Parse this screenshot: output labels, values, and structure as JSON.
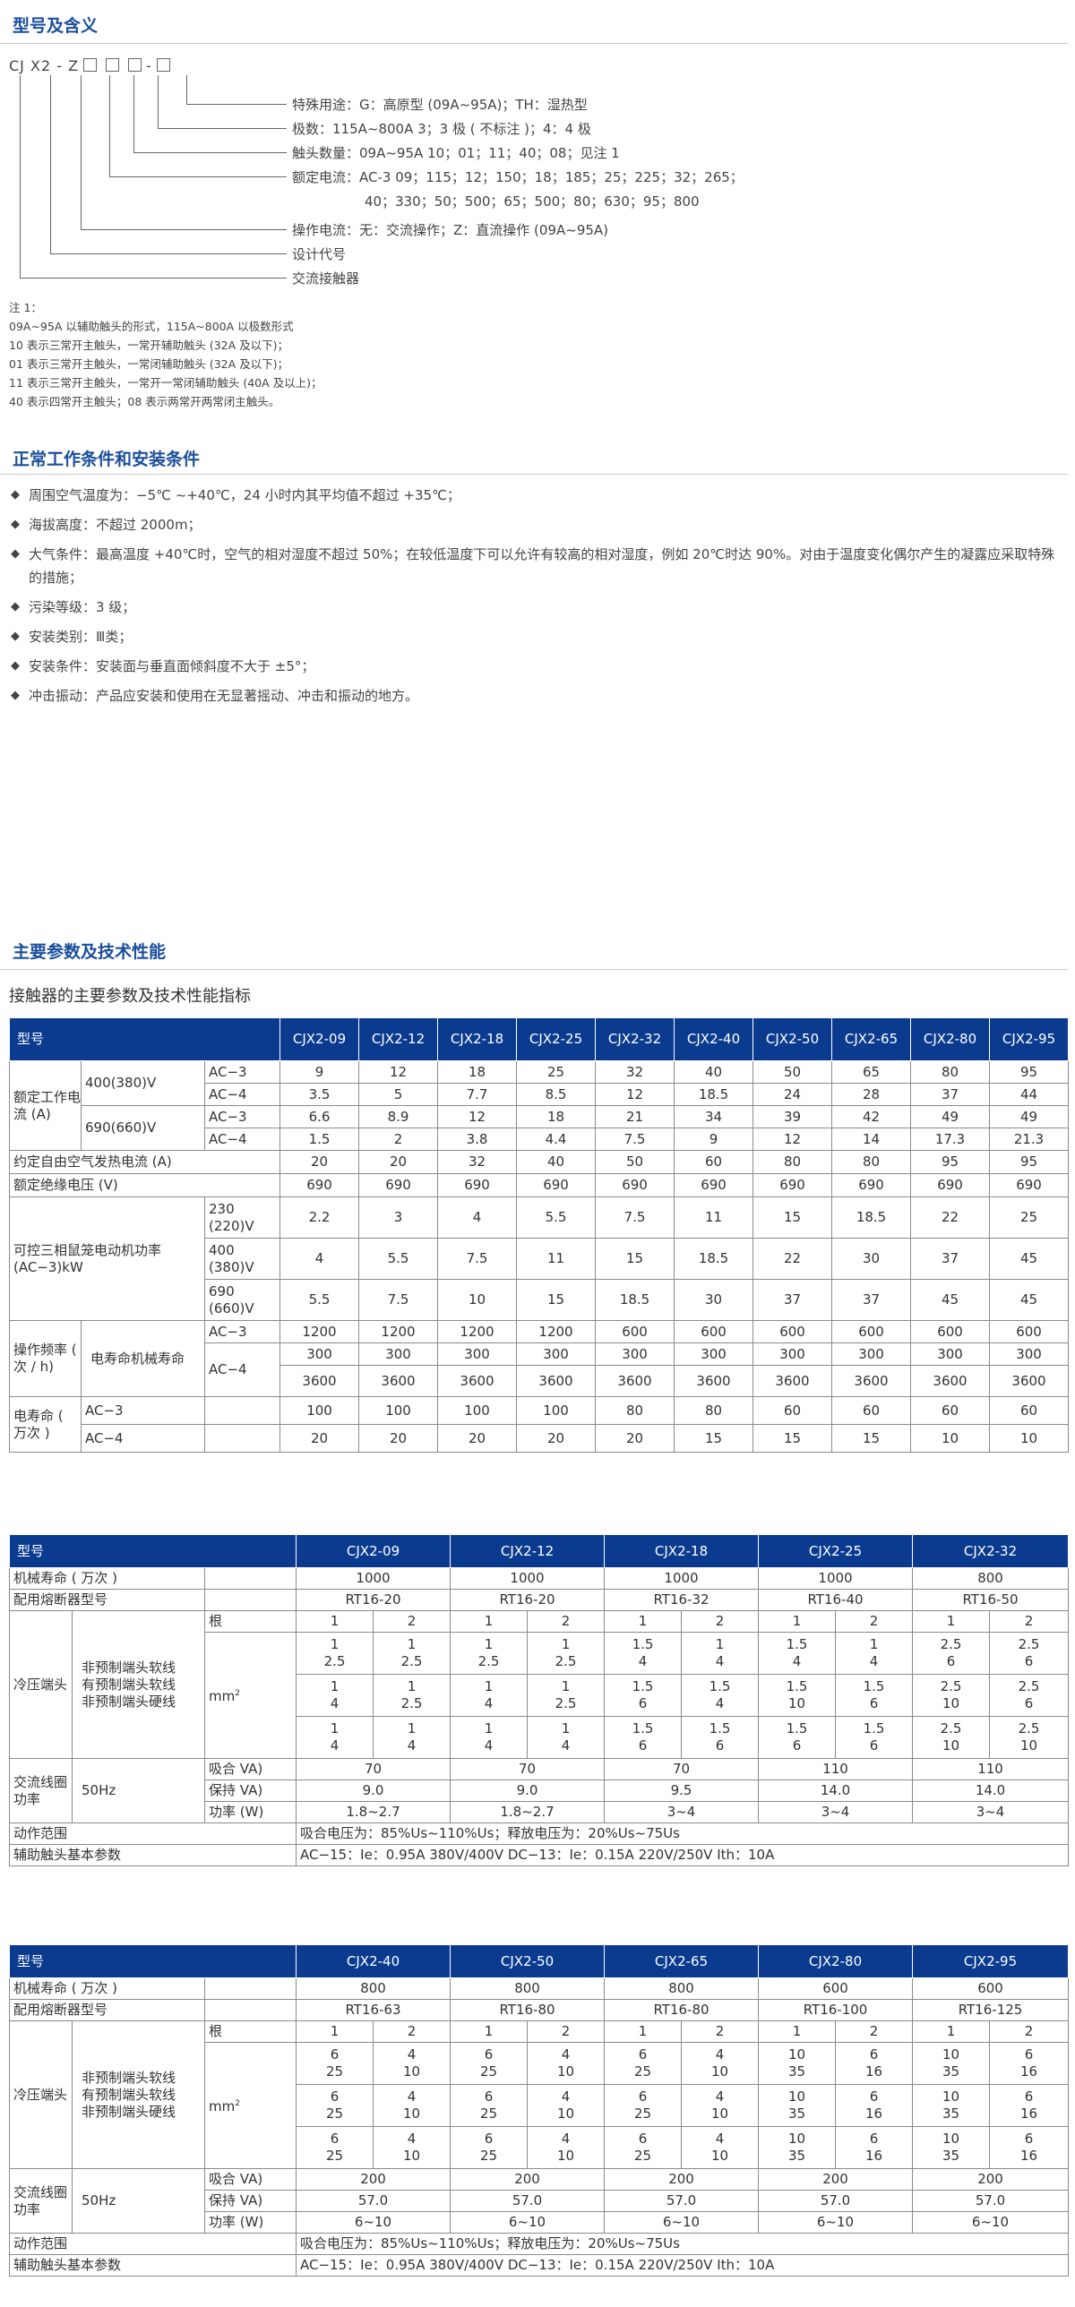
{
  "sections": {
    "model": "型号及含义",
    "conditions": "正常工作条件和安装条件",
    "params": "主要参数及技术性能"
  },
  "model_code": {
    "prefix": "CJ X2 - Z",
    "dash": "-"
  },
  "model_descriptions": [
    "特殊用途：G：高原型 (09A~95A)；TH：湿热型",
    "极数：115A~800A  3；3 极 ( 不标注 )；4：4 极",
    "触头数量：09A~95A  10；01；11；40；08；见注 1",
    "额定电流：AC-3  09；115；12；150；18；185；25；225；32；265；",
    "40；330；50；500；65；500；80；630；95；800",
    "操作电流：无：交流操作；Z：直流操作 (09A~95A)",
    "设计代号",
    "交流接触器"
  ],
  "notes": [
    "注 1：",
    "09A~95A 以辅助触头的形式，115A~800A 以极数形式",
    "10 表示三常开主触头，一常开辅助触头 (32A 及以下)；",
    "01 表示三常开主触头，一常闭辅助触头 (32A 及以下)；",
    "11 表示三常开主触头，一常开一常闭辅助触头 (40A 及以上)；",
    "40 表示四常开主触头；08 表示两常开两常闭主触头。"
  ],
  "conditions": [
    "周围空气温度为：−5℃ ~+40℃，24 小时内其平均值不超过 +35℃；",
    "海拔高度：不超过 2000m；",
    "大气条件：最高温度 +40℃时，空气的相对湿度不超过 50%；在较低温度下可以允许有较高的相对湿度，例如 20℃时达 90%。对由于温度变化偶尔产生的凝露应采取特殊的措施；",
    "污染等级：3 级；",
    "安装类别：Ⅲ类；",
    "安装条件：安装面与垂直面倾斜度不大于 ±5°；",
    "冲击振动：产品应安装和使用在无显著摇动、冲击和振动的地方。"
  ],
  "subtitle": "接触器的主要参数及技术性能指标",
  "table1": {
    "header_label": "型号",
    "models": [
      "CJX2-09",
      "CJX2-12",
      "CJX2-18",
      "CJX2-25",
      "CJX2-32",
      "CJX2-40",
      "CJX2-50",
      "CJX2-65",
      "CJX2-80",
      "CJX2-95"
    ],
    "rated_current_label": "额定工作电流 (A)",
    "v400": "400(380)V",
    "v690": "690(660)V",
    "ac3": "AC−3",
    "ac4": "AC−4",
    "r400_ac3": [
      "9",
      "12",
      "18",
      "25",
      "32",
      "40",
      "50",
      "65",
      "80",
      "95"
    ],
    "r400_ac4": [
      "3.5",
      "5",
      "7.7",
      "8.5",
      "12",
      "18.5",
      "24",
      "28",
      "37",
      "44"
    ],
    "r690_ac3": [
      "6.6",
      "8.9",
      "12",
      "18",
      "21",
      "34",
      "39",
      "42",
      "49",
      "49"
    ],
    "r690_ac4": [
      "1.5",
      "2",
      "3.8",
      "4.4",
      "7.5",
      "9",
      "12",
      "14",
      "17.3",
      "21.3"
    ],
    "thermal_label": "约定自由空气发热电流 (A)",
    "thermal": [
      "20",
      "20",
      "32",
      "40",
      "50",
      "60",
      "80",
      "80",
      "95",
      "95"
    ],
    "insul_label": "额定绝缘电压 (V)",
    "insul": [
      "690",
      "690",
      "690",
      "690",
      "690",
      "690",
      "690",
      "690",
      "690",
      "690"
    ],
    "motor_label": "可控三相鼠笼电动机功率 (AC−3)kW",
    "m230_label": "230 (220)V",
    "m400_label": "400 (380)V",
    "m690_label": "690 (660)V",
    "m230": [
      "2.2",
      "3",
      "4",
      "5.5",
      "7.5",
      "11",
      "15",
      "18.5",
      "22",
      "25"
    ],
    "m400": [
      "4",
      "5.5",
      "7.5",
      "11",
      "15",
      "18.5",
      "22",
      "30",
      "37",
      "45"
    ],
    "m690": [
      "5.5",
      "7.5",
      "10",
      "15",
      "18.5",
      "30",
      "37",
      "37",
      "45",
      "45"
    ],
    "freq_label": "操作频率 ( 次 / h)",
    "life_label": "电寿命机械寿命",
    "f_ac3": [
      "1200",
      "1200",
      "1200",
      "1200",
      "600",
      "600",
      "600",
      "600",
      "600",
      "600"
    ],
    "f_ac4_a": [
      "300",
      "300",
      "300",
      "300",
      "300",
      "300",
      "300",
      "300",
      "300",
      "300"
    ],
    "f_ac4_b": [
      "3600",
      "3600",
      "3600",
      "3600",
      "3600",
      "3600",
      "3600",
      "3600",
      "3600",
      "3600"
    ],
    "elife_label": "电寿命 ( 万次 )",
    "e_ac3": [
      "100",
      "100",
      "100",
      "100",
      "80",
      "80",
      "60",
      "60",
      "60",
      "60"
    ],
    "e_ac4": [
      "20",
      "20",
      "20",
      "20",
      "20",
      "15",
      "15",
      "15",
      "10",
      "10"
    ]
  },
  "table2": {
    "header_label": "型号",
    "models": [
      "CJX2-09",
      "CJX2-12",
      "CJX2-18",
      "CJX2-25",
      "CJX2-32"
    ],
    "mech_label": "机械寿命 ( 万次 )",
    "mech": [
      "1000",
      "1000",
      "1000",
      "1000",
      "800"
    ],
    "fuse_label": "配用熔断器型号",
    "fuse": [
      "RT16-20",
      "RT16-20",
      "RT16-32",
      "RT16-40",
      "RT16-50"
    ],
    "crimp_label": "冷压端头",
    "wire_labels": [
      "非预制端头软线",
      "有预制端头软线",
      "非预制端头硬线"
    ],
    "mm2": "mm",
    "root_label": "根",
    "roots": [
      "1",
      "2",
      "1",
      "2",
      "1",
      "2",
      "1",
      "2",
      "1",
      "2"
    ],
    "r1a": [
      "1",
      "1",
      "1",
      "1",
      "1.5",
      "1",
      "1.5",
      "1",
      "2.5",
      "2.5"
    ],
    "r1b": [
      "2.5",
      "2.5",
      "2.5",
      "2.5",
      "4",
      "4",
      "4",
      "4",
      "6",
      "6"
    ],
    "r2a": [
      "1",
      "1",
      "1",
      "1",
      "1.5",
      "1.5",
      "1.5",
      "1.5",
      "2.5",
      "2.5"
    ],
    "r2b": [
      "4",
      "2.5",
      "4",
      "2.5",
      "6",
      "4",
      "10",
      "6",
      "10",
      "6"
    ],
    "r3a": [
      "1",
      "1",
      "1",
      "1",
      "1.5",
      "1.5",
      "1.5",
      "1.5",
      "2.5",
      "2.5"
    ],
    "r3b": [
      "4",
      "4",
      "4",
      "4",
      "6",
      "6",
      "6",
      "6",
      "10",
      "10"
    ],
    "coil_label": "交流线圈功率",
    "hz": "50Hz",
    "pull_label": "吸合 VA)",
    "hold_label": "保持 VA)",
    "power_label": "功率 (W)",
    "pull": [
      "70",
      "70",
      "70",
      "110",
      "110"
    ],
    "hold": [
      "9.0",
      "9.0",
      "9.5",
      "14.0",
      "14.0"
    ],
    "power": [
      "1.8~2.7",
      "1.8~2.7",
      "3~4",
      "3~4",
      "3~4"
    ],
    "range_label": "动作范围",
    "range": "吸合电压为：85%Us~110%Us；释放电压为：20%Us~75Us",
    "aux_label": "辅助触头基本参数",
    "aux": "AC−15：Ie：0.95A  380V/400V  DC−13：Ie：0.15A  220V/250V  Ith：10A"
  },
  "table3": {
    "header_label": "型号",
    "models": [
      "CJX2-40",
      "CJX2-50",
      "CJX2-65",
      "CJX2-80",
      "CJX2-95"
    ],
    "mech_label": "机械寿命 ( 万次 )",
    "mech": [
      "800",
      "800",
      "800",
      "600",
      "600"
    ],
    "fuse_label": "配用熔断器型号",
    "fuse": [
      "RT16-63",
      "RT16-80",
      "RT16-80",
      "RT16-100",
      "RT16-125"
    ],
    "crimp_label": "冷压端头",
    "wire_labels": [
      "非预制端头软线",
      "有预制端头软线",
      "非预制端头硬线"
    ],
    "mm2": "mm",
    "root_label": "根",
    "roots": [
      "1",
      "2",
      "1",
      "2",
      "1",
      "2",
      "1",
      "2",
      "1",
      "2"
    ],
    "r1a": [
      "6",
      "4",
      "6",
      "4",
      "6",
      "4",
      "10",
      "6",
      "10",
      "6"
    ],
    "r1b": [
      "25",
      "10",
      "25",
      "10",
      "25",
      "10",
      "35",
      "16",
      "35",
      "16"
    ],
    "r2a": [
      "6",
      "4",
      "6",
      "4",
      "6",
      "4",
      "10",
      "6",
      "10",
      "6"
    ],
    "r2b": [
      "25",
      "10",
      "25",
      "10",
      "25",
      "10",
      "35",
      "16",
      "35",
      "16"
    ],
    "r3a": [
      "6",
      "4",
      "6",
      "4",
      "6",
      "4",
      "10",
      "6",
      "10",
      "6"
    ],
    "r3b": [
      "25",
      "10",
      "25",
      "10",
      "25",
      "10",
      "35",
      "16",
      "35",
      "16"
    ],
    "coil_label": "交流线圈功率",
    "hz": "50Hz",
    "pull_label": "吸合 VA)",
    "hold_label": "保持 VA)",
    "power_label": "功率 (W)",
    "pull": [
      "200",
      "200",
      "200",
      "200",
      "200"
    ],
    "hold": [
      "57.0",
      "57.0",
      "57.0",
      "57.0",
      "57.0"
    ],
    "power": [
      "6~10",
      "6~10",
      "6~10",
      "6~10",
      "6~10"
    ],
    "range_label": "动作范围",
    "range": "吸合电压为：85%Us~110%Us；释放电压为：20%Us~75Us",
    "aux_label": "辅助触头基本参数",
    "aux": "AC−15：Ie：0.95A  380V/400V  DC−13：Ie：0.15A  220V/250V  Ith：10A"
  }
}
